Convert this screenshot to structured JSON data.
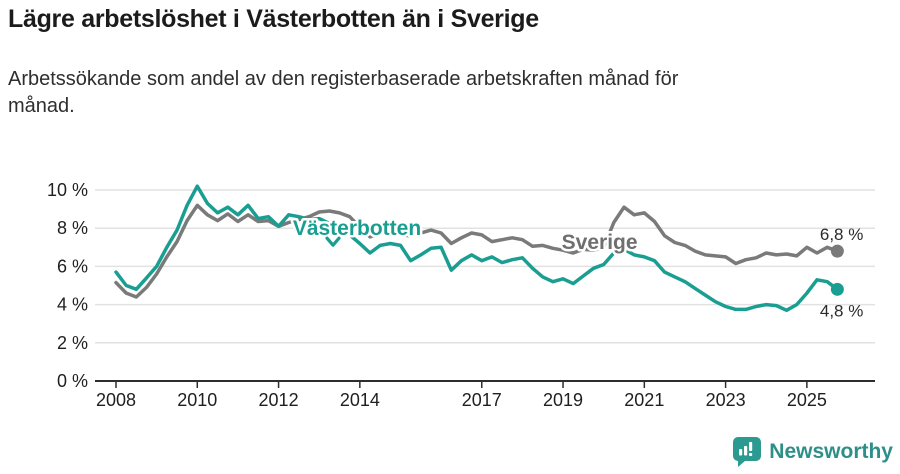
{
  "title": "Lägre arbetslöshet i Västerbotten än i Sverige",
  "subtitle_line1": "Arbetssökande som andel av den registerbaserade arbetskraften månad för",
  "subtitle_line2": "månad.",
  "branding": {
    "logo_text": "Newsworthy",
    "logo_icon": "speech-bubble-bar-chart",
    "icon_color": "#2c9a90",
    "text_color": "#2e8f89"
  },
  "colors": {
    "vasterbotten": "#1a9e92",
    "sverige": "#7a7a7a",
    "grid": "#e2e2e2",
    "axis": "#2e2e2e",
    "tick_text": "#1f1f1f",
    "end_label_text": "#2b2b2b",
    "sverige_label": "#6f6f6f"
  },
  "chart_data": {
    "type": "line",
    "x_start": 2008.0,
    "x_step": 0.25,
    "ylim": [
      0,
      10
    ],
    "grid": true,
    "legend_position": "inline-labels",
    "y_ticks": [
      {
        "label": "10 %",
        "value": 10
      },
      {
        "label": "8 %",
        "value": 8
      },
      {
        "label": "6 %",
        "value": 6
      },
      {
        "label": "4 %",
        "value": 4
      },
      {
        "label": "2 %",
        "value": 2
      },
      {
        "label": "0 %",
        "value": 0
      }
    ],
    "x_ticks": [
      {
        "label": "2008",
        "year": 2008
      },
      {
        "label": "2010",
        "year": 2010
      },
      {
        "label": "2012",
        "year": 2012
      },
      {
        "label": "2014",
        "year": 2014
      },
      {
        "label": "2017",
        "year": 2017
      },
      {
        "label": "2019",
        "year": 2019
      },
      {
        "label": "2021",
        "year": 2021
      },
      {
        "label": "2023",
        "year": 2023
      },
      {
        "label": "2025",
        "year": 2025
      }
    ],
    "series": [
      {
        "name": "Sverige",
        "color": "#7a7a7a",
        "end_label": "6,8 %",
        "values": [
          5.15,
          4.6,
          4.4,
          4.9,
          5.6,
          6.5,
          7.3,
          8.4,
          9.2,
          8.7,
          8.4,
          8.75,
          8.35,
          8.7,
          8.35,
          8.4,
          8.1,
          8.3,
          8.45,
          8.6,
          8.85,
          8.9,
          8.8,
          8.6,
          8.05,
          7.55,
          7.75,
          7.7,
          7.65,
          7.6,
          7.75,
          7.9,
          7.75,
          7.2,
          7.5,
          7.75,
          7.65,
          7.3,
          7.4,
          7.5,
          7.4,
          7.05,
          7.1,
          6.95,
          6.85,
          6.7,
          6.9,
          6.85,
          7.0,
          8.3,
          9.1,
          8.7,
          8.8,
          8.35,
          7.6,
          7.25,
          7.1,
          6.8,
          6.6,
          6.55,
          6.5,
          6.15,
          6.35,
          6.45,
          6.7,
          6.6,
          6.65,
          6.55,
          7.0,
          6.7,
          7.0,
          6.8
        ]
      },
      {
        "name": "Västerbotten",
        "color": "#1a9e92",
        "end_label": "4,8 %",
        "values": [
          5.7,
          5.0,
          4.8,
          5.4,
          6.0,
          7.0,
          7.9,
          9.2,
          10.2,
          9.3,
          8.8,
          9.1,
          8.7,
          9.2,
          8.5,
          8.6,
          8.1,
          8.7,
          8.6,
          8.45,
          8.5,
          8.25,
          8.0,
          7.65,
          7.2,
          6.7,
          7.1,
          7.2,
          7.1,
          6.3,
          6.6,
          6.95,
          7.0,
          5.8,
          6.3,
          6.6,
          6.3,
          6.5,
          6.2,
          6.35,
          6.45,
          5.9,
          5.45,
          5.2,
          5.35,
          5.1,
          5.5,
          5.9,
          6.1,
          6.7,
          6.9,
          6.6,
          6.5,
          6.3,
          5.7,
          5.45,
          5.2,
          4.85,
          4.5,
          4.15,
          3.9,
          3.75,
          3.75,
          3.9,
          4.0,
          3.95,
          3.7,
          4.0,
          4.6,
          5.3,
          5.2,
          4.8
        ]
      }
    ],
    "annotations": [
      {
        "text": "Västerbotten",
        "x_year": 2013.93,
        "y_pct": 7.95,
        "color": "#1a9e92"
      },
      {
        "text": "Sverige",
        "x_year": 2019.9,
        "y_pct": 7.22,
        "color": "#6f6f6f"
      }
    ],
    "pointer_marker": {
      "shape": "chevron-down",
      "x_year": 2013.34,
      "y_pct": 7.32,
      "color": "#1a9e92"
    }
  }
}
